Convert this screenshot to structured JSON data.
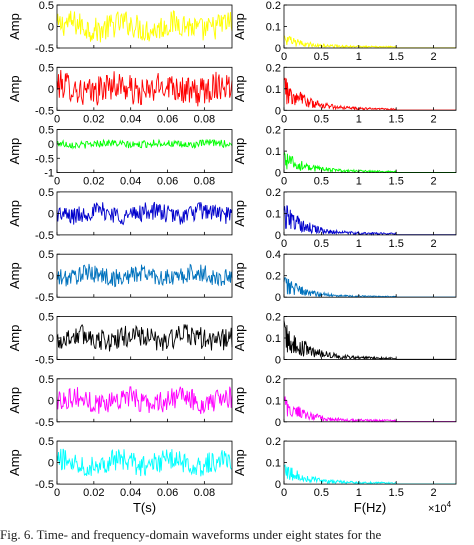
{
  "figure": {
    "caption": "Fig. 6.   Time- and frequency-domain waveforms under eight states for the"
  },
  "chart_data": {
    "type": "line",
    "layout": "grid",
    "rows": 8,
    "columns": 2,
    "panel_colors": [
      "#ffff00",
      "#ff0000",
      "#00ff00",
      "#0000cc",
      "#0072bd",
      "#000000",
      "#ff00ff",
      "#00ffff"
    ],
    "time_domain": {
      "xlabel": "T(s)",
      "ylabel": "Amp",
      "xlim": [
        0,
        0.095
      ],
      "xticks": [
        0,
        0.02,
        0.04,
        0.06,
        0.08
      ],
      "xtick_labels": [
        "0",
        "0.02",
        "0.04",
        "0.06",
        "0.08"
      ],
      "x_tick_labels_on_rows": [
        1,
        2,
        7
      ],
      "xlabel_row": 7,
      "panels": [
        {
          "state": 1,
          "ylim": [
            -0.5,
            0.5
          ],
          "yticks": [
            "0.5",
            "0",
            "-0.5"
          ],
          "amplitude": 0.35,
          "mean": 0
        },
        {
          "state": 2,
          "ylim": [
            -0.5,
            0.5
          ],
          "yticks": [
            "0.5",
            "0",
            "-0.5"
          ],
          "amplitude": 0.4,
          "mean": 0
        },
        {
          "state": 3,
          "ylim": [
            -1,
            0.5
          ],
          "yticks": [
            "0.5",
            "0",
            "-0.5",
            "-1"
          ],
          "amplitude": 0.15,
          "mean": 0
        },
        {
          "state": 4,
          "ylim": [
            -0.5,
            0.5
          ],
          "yticks": [
            "0.5",
            "0",
            "-0.5"
          ],
          "amplitude": 0.25,
          "mean": 0
        },
        {
          "state": 5,
          "ylim": [
            -0.5,
            0.5
          ],
          "yticks": [
            "0.5",
            "0",
            "-0.5"
          ],
          "amplitude": 0.25,
          "mean": 0
        },
        {
          "state": 6,
          "ylim": [
            -0.5,
            0.5
          ],
          "yticks": [
            "0.5",
            "0",
            "-0.5"
          ],
          "amplitude": 0.3,
          "mean": 0
        },
        {
          "state": 7,
          "ylim": [
            -0.5,
            0.5
          ],
          "yticks": [
            "0.5",
            "0",
            "-0.5"
          ],
          "amplitude": 0.3,
          "mean": 0
        },
        {
          "state": 8,
          "ylim": [
            -0.5,
            0.5
          ],
          "yticks": [
            "0.5",
            "0",
            "-0.5"
          ],
          "amplitude": 0.3,
          "mean": 0
        }
      ]
    },
    "frequency_domain": {
      "xlabel": "F(Hz)",
      "ylabel": "Amp",
      "xlim": [
        0,
        2.3
      ],
      "xticks": [
        0,
        0.5,
        1,
        1.5,
        2
      ],
      "xtick_labels": [
        "0",
        "0.5",
        "1",
        "1.5",
        "2"
      ],
      "x_tick_labels_on_rows": [
        0,
        1,
        2,
        3,
        7
      ],
      "x_scale_note": "×10^4",
      "signal_cutoff": 1.5,
      "panels": [
        {
          "state": 1,
          "ylim": [
            0,
            0.2
          ],
          "yticks": [
            "0.2",
            "0.1",
            "0"
          ],
          "peak": 0.06
        },
        {
          "state": 2,
          "ylim": [
            0,
            0.2
          ],
          "yticks": [
            "0.2",
            "0.1",
            "0"
          ],
          "peak": 0.16
        },
        {
          "state": 3,
          "ylim": [
            0,
            0.2
          ],
          "yticks": [
            "0.2",
            "0.1",
            "0"
          ],
          "peak": 0.1
        },
        {
          "state": 4,
          "ylim": [
            0,
            0.2
          ],
          "yticks": [
            "0.2",
            "0.1",
            "0"
          ],
          "peak": 0.15
        },
        {
          "state": 5,
          "ylim": [
            0,
            0.4
          ],
          "yticks": [
            "0.4",
            "0.2",
            "0"
          ],
          "peak": 0.2
        },
        {
          "state": 6,
          "ylim": [
            0,
            0.2
          ],
          "yticks": [
            "0.2",
            "0.1",
            "0"
          ],
          "peak": 0.19
        },
        {
          "state": 7,
          "ylim": [
            0,
            0.2
          ],
          "yticks": [
            "0.2",
            "0.1",
            "0"
          ],
          "peak": 0.12
        },
        {
          "state": 8,
          "ylim": [
            0,
            0.2
          ],
          "yticks": [
            "0.2",
            "0.1",
            "0"
          ],
          "peak": 0.1
        }
      ]
    }
  }
}
